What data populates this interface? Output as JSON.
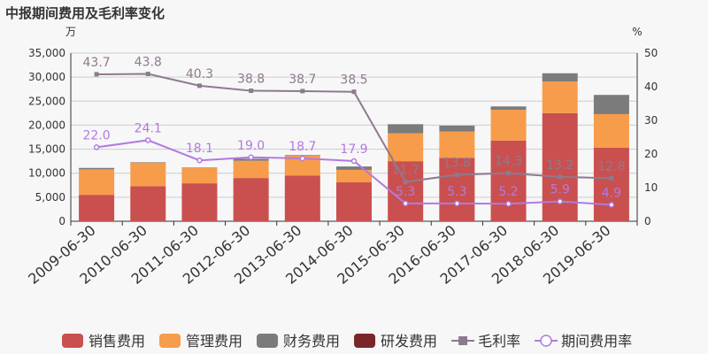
{
  "chart_data": {
    "type": "bar",
    "title": "中报期间费用及毛利率变化",
    "left_unit": "万",
    "right_unit": "%",
    "categories": [
      "2009-06-30",
      "2010-06-30",
      "2011-06-30",
      "2012-06-30",
      "2013-06-30",
      "2014-06-30",
      "2015-06-30",
      "2016-06-30",
      "2017-06-30",
      "2018-06-30",
      "2019-06-30"
    ],
    "stacked_series": [
      {
        "name": "销售费用",
        "color": "#c9504f",
        "values": [
          5500,
          7300,
          7900,
          9000,
          9500,
          8100,
          12500,
          13200,
          16800,
          22500,
          15300
        ]
      },
      {
        "name": "管理费用",
        "color": "#f79c4a",
        "values": [
          5300,
          4900,
          3200,
          3600,
          4200,
          2600,
          5800,
          5500,
          6400,
          6600,
          7000
        ]
      },
      {
        "name": "财务费用",
        "color": "#7b7b7b",
        "values": [
          300,
          100,
          100,
          400,
          100,
          700,
          1900,
          1200,
          700,
          1700,
          4000
        ]
      },
      {
        "name": "研发费用",
        "color": "#7a2628",
        "values": [
          0,
          0,
          0,
          0,
          0,
          0,
          0,
          0,
          0,
          0,
          0
        ]
      }
    ],
    "line_series": [
      {
        "name": "毛利率",
        "color": "#8e7a8f",
        "marker": "square",
        "values": [
          43.7,
          43.8,
          40.3,
          38.8,
          38.7,
          38.5,
          11.7,
          13.8,
          14.3,
          13.2,
          12.8
        ]
      },
      {
        "name": "期间费用率",
        "color": "#b27ae0",
        "marker": "circle",
        "values": [
          22.0,
          24.1,
          18.1,
          19.0,
          18.7,
          17.9,
          5.3,
          5.3,
          5.2,
          5.9,
          4.9
        ]
      }
    ],
    "left_axis": {
      "min": 0,
      "max": 35000,
      "ticks": [
        "0",
        "5,000",
        "10,000",
        "15,000",
        "20,000",
        "25,000",
        "30,000",
        "35,000"
      ]
    },
    "right_axis": {
      "min": 0,
      "max": 50,
      "ticks": [
        "0",
        "10",
        "20",
        "30",
        "40",
        "50"
      ]
    },
    "legend_position": "bottom"
  }
}
